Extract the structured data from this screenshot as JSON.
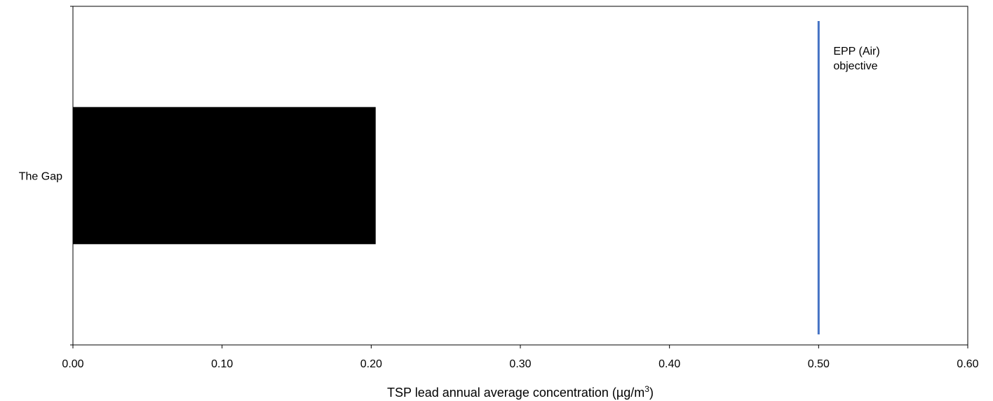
{
  "chart_data": {
    "type": "bar",
    "orientation": "horizontal",
    "categories": [
      "The Gap"
    ],
    "values": [
      0.203
    ],
    "xlabel": "TSP lead annual average concentration (µg/m",
    "xlabel_superscript": "3",
    "xlabel_suffix": ")",
    "xlim": [
      0,
      0.6
    ],
    "xticks": [
      "0.00",
      "0.10",
      "0.20",
      "0.30",
      "0.40",
      "0.50",
      "0.60"
    ],
    "grid": false,
    "reference_line": {
      "value": 0.5,
      "label_lines": [
        "EPP (Air)",
        "objective"
      ]
    },
    "colors": {
      "bar": "#000000",
      "reference_line": "#4472C4",
      "axis": "#000000"
    }
  }
}
